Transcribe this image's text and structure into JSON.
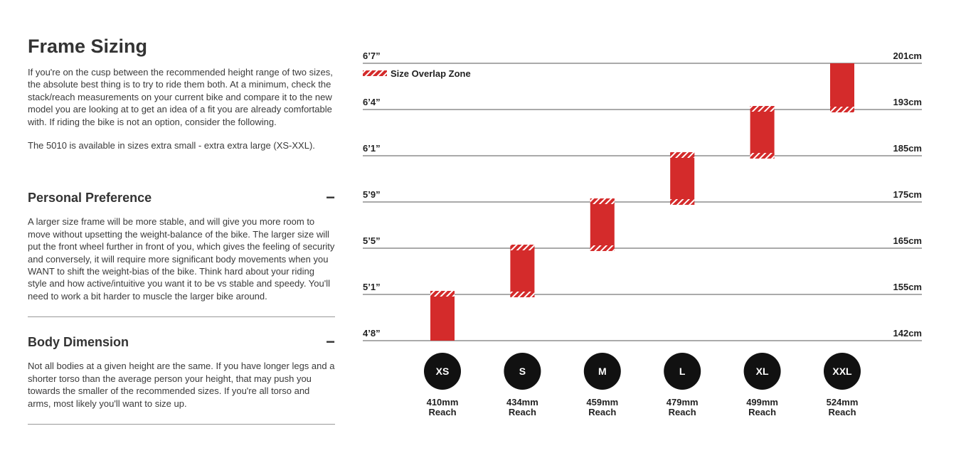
{
  "intro": {
    "title": "Frame Sizing",
    "paragraphs": [
      "If you're on the cusp between the recommended height range of two sizes, the absolute best thing is to try to ride them both. At a minimum, check the stack/reach measurements on your current bike and compare it to the new model you are looking at to get an idea of a fit you are already comfortable with. If riding the bike is not an option, consider the following.",
      "The 5010 is available in sizes extra small - extra extra large (XS-XXL)."
    ]
  },
  "sections": [
    {
      "title": "Personal Preference",
      "toggle": "−",
      "body": "A larger size frame will be more stable, and will give you more room to move without upsetting the weight-balance of the bike. The larger size will put the front wheel further in front of you, which gives the feeling of security and conversely, it will require more significant body movements when you WANT to shift the weight-bias of the bike. Think hard about your riding style and how active/intuitive you want it to be vs stable and speedy. You'll need to work a bit harder to muscle the larger bike around."
    },
    {
      "title": "Body Dimension",
      "toggle": "−",
      "body": "Not all bodies at a given height are the same. If you have longer legs and a shorter torso than the average person your height, that may push you towards the smaller of the recommended sizes. If you're all torso and arms, most likely you'll want to size up."
    }
  ],
  "size_chart": {
    "legend": "Size Overlap Zone",
    "rows": [
      {
        "imperial": "6’7”",
        "metric": "201cm"
      },
      {
        "imperial": "6’4”",
        "metric": "193cm"
      },
      {
        "imperial": "6’1”",
        "metric": "185cm"
      },
      {
        "imperial": "5’9”",
        "metric": "175cm"
      },
      {
        "imperial": "5’5”",
        "metric": "165cm"
      },
      {
        "imperial": "5’1”",
        "metric": "155cm"
      },
      {
        "imperial": "4’8”",
        "metric": "142cm"
      }
    ],
    "sizes": [
      {
        "label": "XS",
        "reach": "410mm",
        "reach_label": "Reach"
      },
      {
        "label": "S",
        "reach": "434mm",
        "reach_label": "Reach"
      },
      {
        "label": "M",
        "reach": "459mm",
        "reach_label": "Reach"
      },
      {
        "label": "L",
        "reach": "479mm",
        "reach_label": "Reach"
      },
      {
        "label": "XL",
        "reach": "499mm",
        "reach_label": "Reach"
      },
      {
        "label": "XXL",
        "reach": "524mm",
        "reach_label": "Reach"
      }
    ]
  }
}
